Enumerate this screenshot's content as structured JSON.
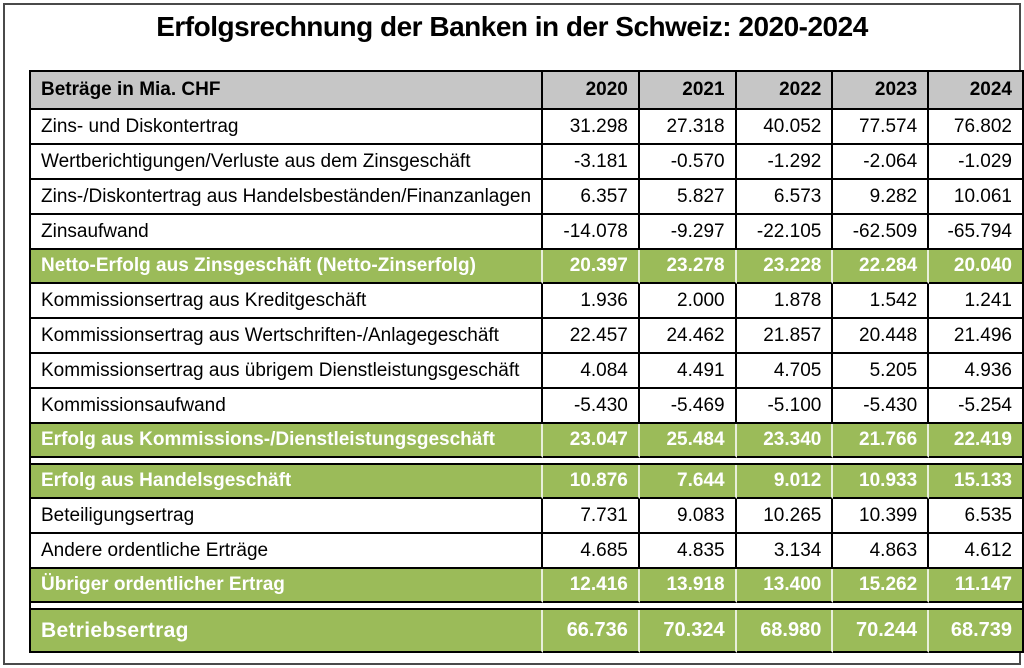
{
  "title": "Erfolgsrechnung der Banken in der Schweiz: 2020-2024",
  "colors": {
    "summary_green": "#9BBB59",
    "header_gray": "#C6C6C6",
    "border_black": "#000000",
    "summary_text": "#FFFFFF"
  },
  "table": {
    "header": {
      "label": "Beträge in Mia. CHF",
      "years": [
        "2020",
        "2021",
        "2022",
        "2023",
        "2024"
      ]
    },
    "rows": [
      {
        "type": "data",
        "label": "Zins- und Diskontertrag",
        "values": [
          "31.298",
          "27.318",
          "40.052",
          "77.574",
          "76.802"
        ]
      },
      {
        "type": "data",
        "label": "Wertberichtigungen/Verluste aus dem Zinsgeschäft",
        "values": [
          "-3.181",
          "-0.570",
          "-1.292",
          "-2.064",
          "-1.029"
        ]
      },
      {
        "type": "data",
        "label": "Zins-/Diskontertrag aus Handelsbeständen/Finanzanlagen",
        "values": [
          "6.357",
          "5.827",
          "6.573",
          "9.282",
          "10.061"
        ]
      },
      {
        "type": "data",
        "label": "Zinsaufwand",
        "values": [
          "-14.078",
          "-9.297",
          "-22.105",
          "-62.509",
          "-65.794"
        ]
      },
      {
        "type": "summary",
        "label": "Netto-Erfolg aus Zinsgeschäft (Netto-Zinserfolg)",
        "values": [
          "20.397",
          "23.278",
          "23.228",
          "22.284",
          "20.040"
        ]
      },
      {
        "type": "data",
        "label": "Kommissionsertrag aus Kreditgeschäft",
        "values": [
          "1.936",
          "2.000",
          "1.878",
          "1.542",
          "1.241"
        ]
      },
      {
        "type": "data",
        "label": "Kommissionsertrag aus Wertschriften-/Anlagegeschäft",
        "values": [
          "22.457",
          "24.462",
          "21.857",
          "20.448",
          "21.496"
        ]
      },
      {
        "type": "data",
        "label": "Kommissionsertrag aus übrigem Dienstleistungsgeschäft",
        "values": [
          "4.084",
          "4.491",
          "4.705",
          "5.205",
          "4.936"
        ]
      },
      {
        "type": "data",
        "label": "Kommissionsaufwand",
        "values": [
          "-5.430",
          "-5.469",
          "-5.100",
          "-5.430",
          "-5.254"
        ]
      },
      {
        "type": "summary",
        "label": "Erfolg aus Kommissions-/Dienstleistungsgeschäft",
        "values": [
          "23.047",
          "25.484",
          "23.340",
          "21.766",
          "22.419"
        ]
      },
      {
        "type": "spacer"
      },
      {
        "type": "summary",
        "label": "Erfolg aus Handelsgeschäft",
        "values": [
          "10.876",
          "7.644",
          "9.012",
          "10.933",
          "15.133"
        ]
      },
      {
        "type": "data",
        "label": "Beteiligungsertrag",
        "values": [
          "7.731",
          "9.083",
          "10.265",
          "10.399",
          "6.535"
        ]
      },
      {
        "type": "data",
        "label": "Andere ordentliche Erträge",
        "values": [
          "4.685",
          "4.835",
          "3.134",
          "4.863",
          "4.612"
        ]
      },
      {
        "type": "summary",
        "label": "Übriger ordentlicher Ertrag",
        "values": [
          "12.416",
          "13.918",
          "13.400",
          "15.262",
          "11.147"
        ]
      },
      {
        "type": "spacer"
      },
      {
        "type": "total",
        "label": "Betriebsertrag",
        "values": [
          "66.736",
          "70.324",
          "68.980",
          "70.244",
          "68.739"
        ]
      }
    ]
  },
  "chart_data": {
    "type": "table",
    "title": "Erfolgsrechnung der Banken in der Schweiz: 2020-2024",
    "unit_label": "Beträge in Mia. CHF",
    "columns": [
      "2020",
      "2021",
      "2022",
      "2023",
      "2024"
    ],
    "rows": [
      {
        "label": "Zins- und Diskontertrag",
        "summary": false,
        "values": [
          31.298,
          27.318,
          40.052,
          77.574,
          76.802
        ]
      },
      {
        "label": "Wertberichtigungen/Verluste aus dem Zinsgeschäft",
        "summary": false,
        "values": [
          -3.181,
          -0.57,
          -1.292,
          -2.064,
          -1.029
        ]
      },
      {
        "label": "Zins-/Diskontertrag aus Handelsbeständen/Finanzanlagen",
        "summary": false,
        "values": [
          6.357,
          5.827,
          6.573,
          9.282,
          10.061
        ]
      },
      {
        "label": "Zinsaufwand",
        "summary": false,
        "values": [
          -14.078,
          -9.297,
          -22.105,
          -62.509,
          -65.794
        ]
      },
      {
        "label": "Netto-Erfolg aus Zinsgeschäft (Netto-Zinserfolg)",
        "summary": true,
        "values": [
          20.397,
          23.278,
          23.228,
          22.284,
          20.04
        ]
      },
      {
        "label": "Kommissionsertrag aus Kreditgeschäft",
        "summary": false,
        "values": [
          1.936,
          2.0,
          1.878,
          1.542,
          1.241
        ]
      },
      {
        "label": "Kommissionsertrag aus Wertschriften-/Anlagegeschäft",
        "summary": false,
        "values": [
          22.457,
          24.462,
          21.857,
          20.448,
          21.496
        ]
      },
      {
        "label": "Kommissionsertrag aus übrigem Dienstleistungsgeschäft",
        "summary": false,
        "values": [
          4.084,
          4.491,
          4.705,
          5.205,
          4.936
        ]
      },
      {
        "label": "Kommissionsaufwand",
        "summary": false,
        "values": [
          -5.43,
          -5.469,
          -5.1,
          -5.43,
          -5.254
        ]
      },
      {
        "label": "Erfolg aus Kommissions-/Dienstleistungsgeschäft",
        "summary": true,
        "values": [
          23.047,
          25.484,
          23.34,
          21.766,
          22.419
        ]
      },
      {
        "label": "Erfolg aus Handelsgeschäft",
        "summary": true,
        "values": [
          10.876,
          7.644,
          9.012,
          10.933,
          15.133
        ]
      },
      {
        "label": "Beteiligungsertrag",
        "summary": false,
        "values": [
          7.731,
          9.083,
          10.265,
          10.399,
          6.535
        ]
      },
      {
        "label": "Andere ordentliche Erträge",
        "summary": false,
        "values": [
          4.685,
          4.835,
          3.134,
          4.863,
          4.612
        ]
      },
      {
        "label": "Übriger ordentlicher Ertrag",
        "summary": true,
        "values": [
          12.416,
          13.918,
          13.4,
          15.262,
          11.147
        ]
      },
      {
        "label": "Betriebsertrag",
        "summary": true,
        "values": [
          66.736,
          70.324,
          68.98,
          70.244,
          68.739
        ]
      }
    ]
  }
}
